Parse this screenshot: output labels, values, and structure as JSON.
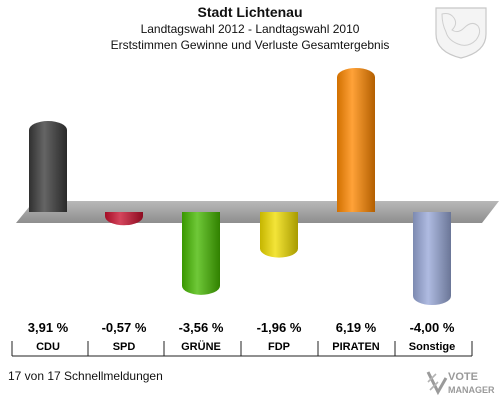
{
  "header": {
    "title": "Stadt Lichtenau",
    "subtitle1": "Landtagswahl 2012 - Landtagswahl 2010",
    "subtitle2": "Erststimmen Gewinne und Verluste Gesamtergebnis"
  },
  "footer": {
    "reports": "17 von 17 Schnellmeldungen"
  },
  "logo": {
    "line1": "VOTE",
    "line2": "MANAGER"
  },
  "chart_data": {
    "type": "bar",
    "title": "Stadt Lichtenau",
    "categories": [
      "CDU",
      "SPD",
      "GRÜNE",
      "FDP",
      "PIRATEN",
      "Sonstige"
    ],
    "values": [
      3.91,
      -0.57,
      -3.56,
      -1.96,
      6.19,
      -4.0
    ],
    "value_labels": [
      "3,91 %",
      "-0,57 %",
      "-3,56 %",
      "-1,96 %",
      "6,19 %",
      "-4,00 %"
    ],
    "colors": [
      "#3a3a3a",
      "#c8102e",
      "#46b800",
      "#f0dd00",
      "#ff8800",
      "#99a8d8"
    ],
    "ylim": [
      -4.0,
      6.19
    ],
    "grid": false
  }
}
